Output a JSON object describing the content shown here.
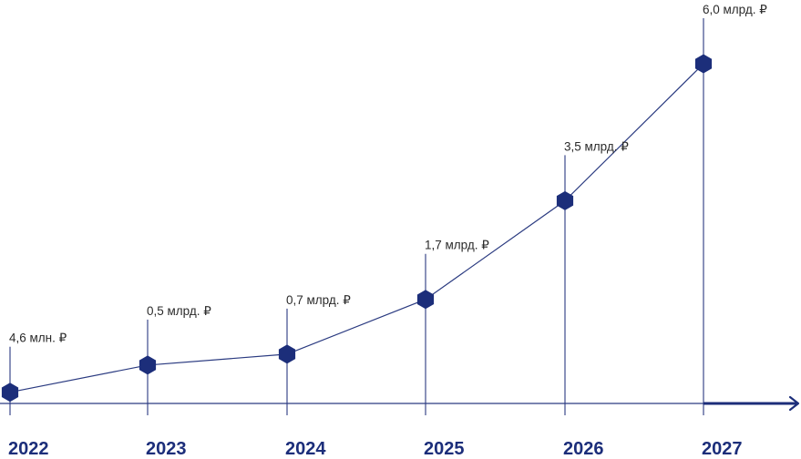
{
  "chart_data": {
    "type": "line",
    "categories": [
      "2022",
      "2023",
      "2024",
      "2025",
      "2026",
      "2027"
    ],
    "values": [
      0.0046,
      0.5,
      0.7,
      1.7,
      3.5,
      6.0
    ],
    "value_labels": [
      "4,6 млн. ₽",
      "0,5 млрд. ₽",
      "0,7 млрд. ₽",
      "1,7 млрд. ₽",
      "3,5 млрд. ₽",
      "6,0 млрд. ₽"
    ],
    "title": "",
    "xlabel": "",
    "ylabel": "",
    "ylim": [
      0,
      6.0
    ],
    "grid": false,
    "legend": "none",
    "colors": {
      "accent": "#1c2e7a",
      "line": "#2a3a80",
      "label": "#2b2b2b"
    }
  }
}
